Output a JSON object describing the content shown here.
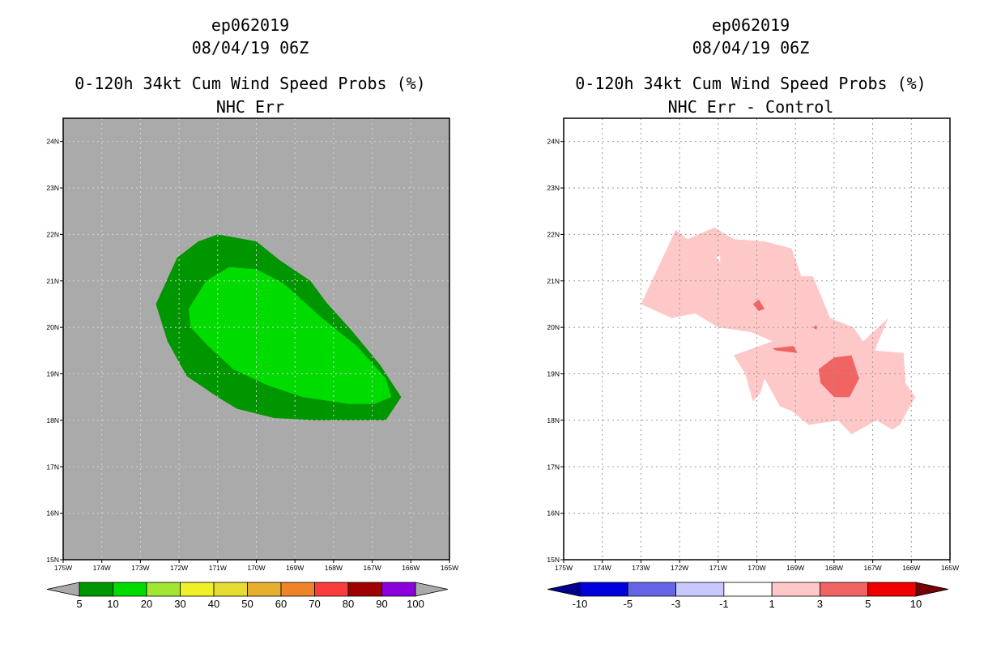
{
  "panels": [
    {
      "line1": "ep062019",
      "line2": "08/04/19 06Z",
      "line3": "0-120h 34kt Cum Wind Speed Probs (%)",
      "line4": "NHC Err"
    },
    {
      "line1": "ep062019",
      "line2": "08/04/19 06Z",
      "line3": "0-120h 34kt Cum Wind Speed Probs (%)",
      "line4": "NHC Err - Control"
    }
  ],
  "chart_data": [
    {
      "type": "filled-contour map",
      "title": "0-120h 34kt Cum Wind Speed Probs (%)",
      "subtitle": "NHC Err",
      "storm": "ep062019",
      "time": "08/04/19 06Z",
      "background_color": "#aaaaaa",
      "grid": true,
      "xlim": [
        -175,
        -165
      ],
      "ylim": [
        15,
        24.5
      ],
      "x_ticks": [
        "175W",
        "174W",
        "173W",
        "172W",
        "171W",
        "170W",
        "169W",
        "168W",
        "167W",
        "166W",
        "165W"
      ],
      "y_ticks": [
        "15N",
        "16N",
        "17N",
        "18N",
        "19N",
        "20N",
        "21N",
        "22N",
        "23N",
        "24N"
      ],
      "colorbar": {
        "labels": [
          "5",
          "10",
          "20",
          "30",
          "40",
          "50",
          "60",
          "70",
          "80",
          "90",
          "100"
        ],
        "colors": [
          "#009600",
          "#00dc00",
          "#a0e632",
          "#f0f028",
          "#e6dc32",
          "#e6af2d",
          "#f08228",
          "#fa3c3c",
          "#a00000",
          "#8c00dc"
        ],
        "under_color": "#aaaaaa",
        "over_color": "#aaaaaa"
      },
      "contours": [
        {
          "level": "5-10",
          "color": "#009600",
          "points": [
            [
              -172.6,
              20.5
            ],
            [
              -172.05,
              21.5
            ],
            [
              -171.5,
              21.85
            ],
            [
              -171.0,
              22.0
            ],
            [
              -170.0,
              21.85
            ],
            [
              -169.4,
              21.45
            ],
            [
              -168.6,
              21.0
            ],
            [
              -168.2,
              20.55
            ],
            [
              -167.5,
              19.9
            ],
            [
              -166.8,
              19.2
            ],
            [
              -166.25,
              18.5
            ],
            [
              -166.65,
              18.0
            ],
            [
              -167.7,
              18.0
            ],
            [
              -168.5,
              18.0
            ],
            [
              -169.55,
              18.05
            ],
            [
              -170.5,
              18.25
            ],
            [
              -171.0,
              18.5
            ],
            [
              -171.8,
              18.95
            ],
            [
              -172.3,
              19.7
            ]
          ]
        },
        {
          "level": "10-20",
          "color": "#00dc00",
          "points": [
            [
              -171.75,
              20.4
            ],
            [
              -171.3,
              21.0
            ],
            [
              -170.7,
              21.3
            ],
            [
              -170.0,
              21.25
            ],
            [
              -169.3,
              20.95
            ],
            [
              -168.3,
              20.2
            ],
            [
              -167.4,
              19.6
            ],
            [
              -166.65,
              18.9
            ],
            [
              -166.5,
              18.5
            ],
            [
              -166.95,
              18.35
            ],
            [
              -167.6,
              18.35
            ],
            [
              -168.8,
              18.5
            ],
            [
              -169.7,
              18.75
            ],
            [
              -170.6,
              19.1
            ],
            [
              -171.25,
              19.6
            ],
            [
              -171.7,
              20.0
            ]
          ]
        }
      ]
    },
    {
      "type": "filled-contour map",
      "title": "0-120h 34kt Cum Wind Speed Probs (%)",
      "subtitle": "NHC Err - Control",
      "storm": "ep062019",
      "time": "08/04/19 06Z",
      "background_color": "#ffffff",
      "grid": true,
      "xlim": [
        -175,
        -165
      ],
      "ylim": [
        15,
        24.5
      ],
      "x_ticks": [
        "175W",
        "174W",
        "173W",
        "172W",
        "171W",
        "170W",
        "169W",
        "168W",
        "167W",
        "166W",
        "165W"
      ],
      "y_ticks": [
        "15N",
        "16N",
        "17N",
        "18N",
        "19N",
        "20N",
        "21N",
        "22N",
        "23N",
        "24N"
      ],
      "colorbar": {
        "labels": [
          "-10",
          "-5",
          "-3",
          "-1",
          "1",
          "3",
          "5",
          "10"
        ],
        "colors": [
          "#0000dc",
          "#6464e6",
          "#c8c8ff",
          "#ffffff",
          "#ffc8c8",
          "#f06464",
          "#f00000"
        ],
        "under_color": "#00008c",
        "over_color": "#780000"
      },
      "contours": [
        {
          "level": "1-3",
          "color": "#ffc8c8",
          "points": [
            [
              -173.0,
              20.5
            ],
            [
              -172.1,
              22.1
            ],
            [
              -171.8,
              21.9
            ],
            [
              -171.1,
              22.15
            ],
            [
              -170.6,
              21.9
            ],
            [
              -169.8,
              21.85
            ],
            [
              -169.1,
              21.7
            ],
            [
              -168.85,
              21.1
            ],
            [
              -168.55,
              21.1
            ],
            [
              -168.1,
              20.2
            ],
            [
              -167.5,
              20.0
            ],
            [
              -167.25,
              19.7
            ],
            [
              -166.6,
              20.2
            ],
            [
              -166.95,
              19.5
            ],
            [
              -166.2,
              19.45
            ],
            [
              -166.15,
              18.8
            ],
            [
              -165.9,
              18.5
            ],
            [
              -166.3,
              17.9
            ],
            [
              -166.5,
              17.8
            ],
            [
              -166.9,
              18.0
            ],
            [
              -167.55,
              17.7
            ],
            [
              -167.9,
              18.0
            ],
            [
              -168.65,
              17.9
            ],
            [
              -169.1,
              18.2
            ],
            [
              -169.4,
              18.3
            ],
            [
              -169.8,
              18.9
            ],
            [
              -169.9,
              18.6
            ],
            [
              -170.1,
              18.4
            ],
            [
              -170.3,
              19.0
            ],
            [
              -170.6,
              19.4
            ],
            [
              -169.6,
              19.7
            ],
            [
              -170.15,
              19.9
            ],
            [
              -171.0,
              20.0
            ],
            [
              -171.6,
              20.3
            ],
            [
              -172.2,
              20.2
            ]
          ]
        },
        {
          "level": "1-3 hole",
          "color": "#ffffff",
          "points": [
            [
              -171.05,
              21.5
            ],
            [
              -170.95,
              21.4
            ],
            [
              -170.95,
              21.55
            ]
          ]
        },
        {
          "level": "3-5",
          "color": "#f06464",
          "points": [
            [
              -168.4,
              19.1
            ],
            [
              -168.0,
              19.35
            ],
            [
              -167.55,
              19.4
            ],
            [
              -167.35,
              18.9
            ],
            [
              -167.6,
              18.5
            ],
            [
              -168.0,
              18.5
            ],
            [
              -168.35,
              18.8
            ]
          ]
        },
        {
          "level": "3-5",
          "color": "#f06464",
          "points": [
            [
              -170.1,
              20.5
            ],
            [
              -169.95,
              20.6
            ],
            [
              -169.8,
              20.4
            ],
            [
              -169.95,
              20.35
            ]
          ]
        },
        {
          "level": "3-5",
          "color": "#f06464",
          "points": [
            [
              -169.6,
              19.55
            ],
            [
              -169.05,
              19.6
            ],
            [
              -168.95,
              19.45
            ],
            [
              -169.5,
              19.5
            ]
          ]
        },
        {
          "level": "3-5",
          "color": "#f06464",
          "points": [
            [
              -168.55,
              20.0
            ],
            [
              -168.45,
              20.05
            ],
            [
              -168.45,
              19.95
            ]
          ]
        }
      ]
    }
  ]
}
